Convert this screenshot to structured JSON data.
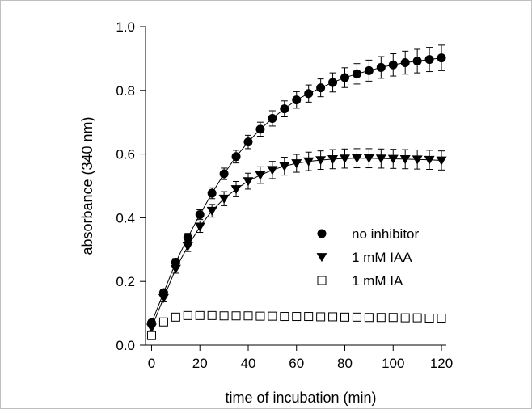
{
  "chart_data": {
    "type": "scatter",
    "xlabel": "time of incubation (min)",
    "ylabel": "absorbance (340 nm)",
    "xlim": [
      -2.5,
      122
    ],
    "ylim": [
      0.0,
      1.0
    ],
    "x_ticks": [
      "0",
      "20",
      "40",
      "60",
      "80",
      "100",
      "120"
    ],
    "y_ticks": [
      "0.0",
      "0.2",
      "0.4",
      "0.6",
      "0.8",
      "1.0"
    ],
    "legend_placement": "lower-right inside plot",
    "grid": false,
    "x": [
      0,
      5,
      10,
      15,
      20,
      25,
      30,
      35,
      40,
      45,
      50,
      55,
      60,
      65,
      70,
      75,
      80,
      85,
      90,
      95,
      100,
      105,
      110,
      115,
      120
    ],
    "series": [
      {
        "name": "no inhibitor",
        "marker": "circle-filled",
        "line": true,
        "values": [
          0.07,
          0.165,
          0.26,
          0.338,
          0.41,
          0.477,
          0.538,
          0.592,
          0.638,
          0.678,
          0.712,
          0.742,
          0.77,
          0.79,
          0.808,
          0.825,
          0.84,
          0.852,
          0.862,
          0.872,
          0.88,
          0.887,
          0.892,
          0.897,
          0.902
        ],
        "errors": [
          0.01,
          0.01,
          0.012,
          0.013,
          0.015,
          0.017,
          0.018,
          0.02,
          0.021,
          0.022,
          0.024,
          0.025,
          0.026,
          0.027,
          0.028,
          0.03,
          0.031,
          0.032,
          0.033,
          0.034,
          0.035,
          0.036,
          0.037,
          0.038,
          0.04
        ]
      },
      {
        "name": "1 mM IAA",
        "marker": "triangle-down-filled",
        "line": true,
        "values": [
          0.055,
          0.148,
          0.24,
          0.31,
          0.372,
          0.422,
          0.46,
          0.49,
          0.515,
          0.534,
          0.55,
          0.562,
          0.571,
          0.577,
          0.581,
          0.584,
          0.586,
          0.587,
          0.587,
          0.586,
          0.585,
          0.584,
          0.583,
          0.582,
          0.58
        ],
        "errors": [
          0.01,
          0.012,
          0.014,
          0.016,
          0.018,
          0.02,
          0.022,
          0.024,
          0.025,
          0.026,
          0.027,
          0.028,
          0.028,
          0.029,
          0.029,
          0.03,
          0.03,
          0.03,
          0.03,
          0.03,
          0.03,
          0.03,
          0.03,
          0.03,
          0.03
        ]
      },
      {
        "name": "1 mM IA",
        "marker": "square-open",
        "line": false,
        "values": [
          0.03,
          0.073,
          0.088,
          0.093,
          0.093,
          0.093,
          0.092,
          0.092,
          0.092,
          0.091,
          0.091,
          0.09,
          0.09,
          0.09,
          0.089,
          0.089,
          0.088,
          0.088,
          0.087,
          0.087,
          0.087,
          0.086,
          0.086,
          0.085,
          0.085
        ],
        "errors": [
          0.004,
          0.004,
          0.004,
          0.004,
          0.004,
          0.004,
          0.004,
          0.004,
          0.004,
          0.004,
          0.004,
          0.004,
          0.004,
          0.004,
          0.004,
          0.004,
          0.004,
          0.004,
          0.004,
          0.004,
          0.004,
          0.004,
          0.004,
          0.004,
          0.004
        ]
      }
    ]
  }
}
